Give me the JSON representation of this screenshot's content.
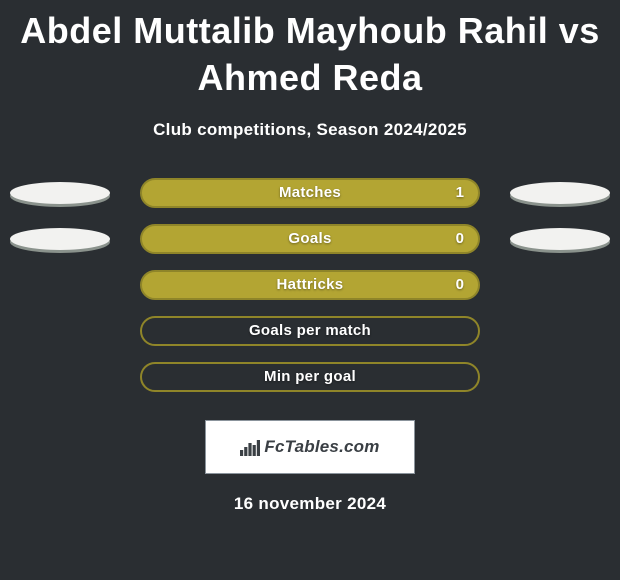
{
  "title": "Abdel Muttalib Mayhoub Rahil vs Ahmed Reda",
  "subtitle": "Club competitions, Season 2024/2025",
  "date": "16 november 2024",
  "brand": {
    "text": "FcTables.com"
  },
  "colors": {
    "background": "#2a2e32",
    "text": "#ffffff",
    "oval_light": "#f2f2f0",
    "oval_shadow": "#8a928c",
    "pill_fill": "#b3a533",
    "pill_border": "#8f8529",
    "pill_empty_fill": "transparent",
    "brand_box_bg": "#ffffff",
    "brand_box_border": "#8b949c",
    "brand_text": "#3a3f44"
  },
  "rows": [
    {
      "label": "Matches",
      "value": "1",
      "has_value": true,
      "filled": true,
      "left_oval": true,
      "right_oval": true
    },
    {
      "label": "Goals",
      "value": "0",
      "has_value": true,
      "filled": true,
      "left_oval": true,
      "right_oval": true
    },
    {
      "label": "Hattricks",
      "value": "0",
      "has_value": true,
      "filled": true,
      "left_oval": false,
      "right_oval": false
    },
    {
      "label": "Goals per match",
      "value": "",
      "has_value": false,
      "filled": false,
      "left_oval": false,
      "right_oval": false
    },
    {
      "label": "Min per goal",
      "value": "",
      "has_value": false,
      "filled": false,
      "left_oval": false,
      "right_oval": false
    }
  ]
}
